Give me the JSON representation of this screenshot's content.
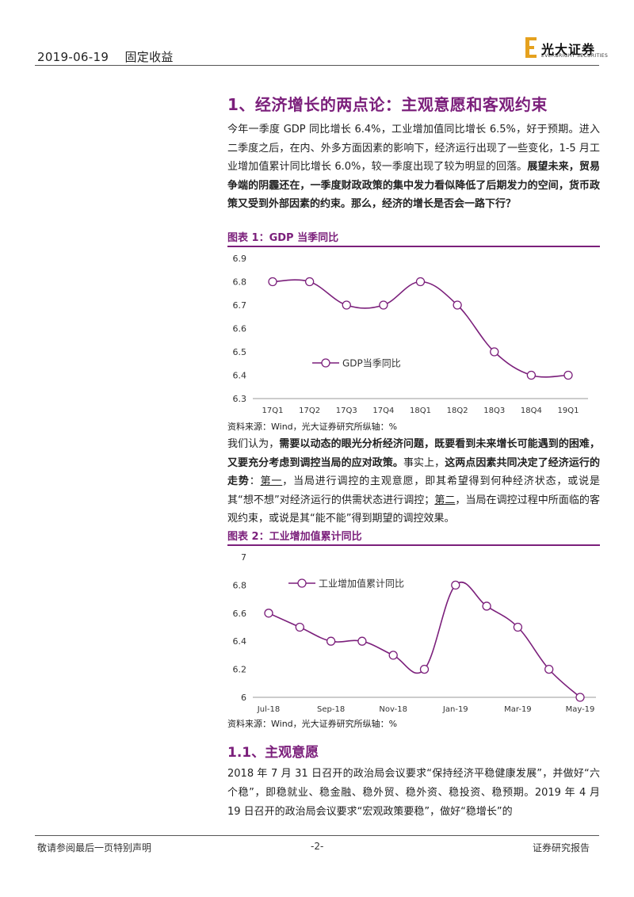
{
  "header": {
    "date": "2019-06-19",
    "category": "固定收益",
    "logo_name": "光大证券",
    "logo_sub": "EVERBRIGHT SECURITIES"
  },
  "section1": {
    "title": "1、经济增长的两点论：主观意愿和客观约束",
    "para1_normal": "今年一季度 GDP 同比增长 6.4%，工业增加值同比增长 6.5%，好于预期。进入二季度之后，在内、外多方面因素的影响下，经济运行出现了一些变化，1-5 月工业增加值累计同比增长 6.0%，较一季度出现了较为明显的回落。",
    "para1_bold": "展望未来，贸易争端的阴霾还在，一季度财政政策的集中发力看似降低了后期发力的空间，货币政策又受到外部因素的约束。那么，经济的增长是否会一路下行？"
  },
  "figure1": {
    "title": "图表 1：GDP 当季同比",
    "source": "资料来源：Wind，光大证券研究所纵轴：%"
  },
  "para2": {
    "s1": "我们认为，",
    "s2": "需要以动态的眼光分析经济问题，既要看到未来增长可能遇到的困难，又要充分考虑到调控当局的应对政策。",
    "s3": "事实上，",
    "s4": "这两点因素共同决定了经济运行的走势",
    "s5": "：",
    "s6": "第一",
    "s7": "，当局进行调控的主观意愿，即其希望得到何种经济状态，或说是其“想不想”对经济运行的供需状态进行调控；",
    "s8": "第二",
    "s9": "，当局在调控过程中所面临的客观约束，或说是其“能不能”得到期望的调控效果。"
  },
  "figure2": {
    "title": "图表 2：工业增加值累计同比",
    "source": "资料来源：Wind，光大证券研究所纵轴：%"
  },
  "section11": {
    "title": "1.1、主观意愿",
    "para": "2018 年 7 月 31 日召开的政治局会议要求“保持经济平稳健康发展”，并做好“六个稳”，即稳就业、稳金融、稳外贸、稳外资、稳投资、稳预期。2019 年 4 月 19 日召开的政治局会议要求“宏观政策要稳”，做好“稳增长”的"
  },
  "footer": {
    "left": "敬请参阅最后一页特别声明",
    "center": "-2-",
    "right": "证券研究报告"
  },
  "colors": {
    "accent": "#7B1F7B",
    "logo_gold": "#E5A11E"
  },
  "chart_data": [
    {
      "type": "line",
      "categories": [
        "17Q1",
        "17Q2",
        "17Q3",
        "17Q4",
        "18Q1",
        "18Q2",
        "18Q3",
        "18Q4",
        "19Q1"
      ],
      "series": [
        {
          "name": "GDP当季同比",
          "values": [
            6.8,
            6.8,
            6.7,
            6.7,
            6.8,
            6.7,
            6.5,
            6.4,
            6.4
          ]
        }
      ],
      "ylim": [
        6.3,
        6.9
      ],
      "yticks": [
        "6.3",
        "6.4",
        "6.5",
        "6.6",
        "6.7",
        "6.8",
        "6.9"
      ],
      "legend": "center-left",
      "grid": false
    },
    {
      "type": "line",
      "categories": [
        "Jul-18",
        "Aug-18",
        "Sep-18",
        "Oct-18",
        "Nov-18",
        "Dec-18",
        "Jan-19",
        "Feb-19",
        "Mar-19",
        "Apr-19",
        "May-19"
      ],
      "xticks": [
        "Jul-18",
        "Sep-18",
        "Nov-18",
        "Jan-19",
        "Mar-19",
        "May-19"
      ],
      "series": [
        {
          "name": "工业增加值累计同比",
          "values": [
            6.6,
            6.5,
            6.4,
            6.4,
            6.3,
            6.2,
            6.8,
            6.65,
            6.5,
            6.2,
            6.0
          ]
        }
      ],
      "ylim": [
        6.0,
        7.0
      ],
      "yticks": [
        "6",
        "6.2",
        "6.4",
        "6.6",
        "6.8",
        "7"
      ],
      "legend": "top-left",
      "grid": false
    }
  ]
}
